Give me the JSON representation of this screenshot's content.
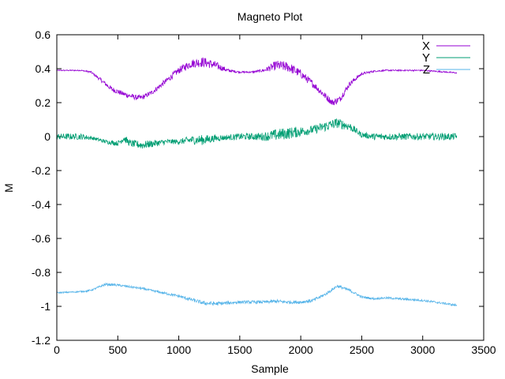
{
  "chart_data": {
    "type": "line",
    "title": "Magneto Plot",
    "xlabel": "Sample",
    "ylabel": "M",
    "xlim": [
      0,
      3500
    ],
    "ylim": [
      -1.2,
      0.6
    ],
    "grid": false,
    "legend_position": "top-right",
    "x_ticks": [
      0,
      500,
      1000,
      1500,
      2000,
      2500,
      3000,
      3500
    ],
    "x_tick_labels": [
      "0",
      "500",
      "1000",
      "1500",
      "2000",
      "2500",
      "3000",
      "3500"
    ],
    "y_ticks": [
      -1.2,
      -1,
      -0.8,
      -0.6,
      -0.4,
      -0.2,
      0,
      0.2,
      0.4,
      0.6
    ],
    "y_tick_labels": [
      "-1.2",
      "-1",
      "-0.8",
      "-0.6",
      "-0.4",
      "-0.2",
      "0",
      "0.2",
      "0.4",
      "0.6"
    ],
    "series": [
      {
        "name": "X",
        "color": "#9400d3",
        "x": [
          0,
          200,
          280,
          350,
          450,
          550,
          650,
          700,
          780,
          900,
          1000,
          1100,
          1200,
          1300,
          1400,
          1500,
          1600,
          1700,
          1800,
          1900,
          2000,
          2100,
          2200,
          2260,
          2320,
          2400,
          2500,
          2600,
          2700,
          2800,
          2900,
          3000,
          3100,
          3200,
          3280
        ],
        "y": [
          0.39,
          0.39,
          0.38,
          0.34,
          0.28,
          0.25,
          0.23,
          0.23,
          0.26,
          0.33,
          0.39,
          0.43,
          0.44,
          0.42,
          0.39,
          0.38,
          0.38,
          0.39,
          0.42,
          0.41,
          0.37,
          0.31,
          0.24,
          0.2,
          0.22,
          0.31,
          0.37,
          0.385,
          0.39,
          0.39,
          0.39,
          0.39,
          0.385,
          0.38,
          0.375
        ],
        "noise": [
          0.003,
          0.003,
          0.006,
          0.01,
          0.015,
          0.015,
          0.015,
          0.014,
          0.014,
          0.016,
          0.02,
          0.025,
          0.03,
          0.025,
          0.01,
          0.005,
          0.005,
          0.01,
          0.03,
          0.03,
          0.025,
          0.02,
          0.02,
          0.02,
          0.02,
          0.015,
          0.008,
          0.005,
          0.004,
          0.004,
          0.004,
          0.004,
          0.004,
          0.004,
          0.004
        ]
      },
      {
        "name": "Y",
        "color": "#009e73",
        "x": [
          0,
          200,
          300,
          400,
          500,
          550,
          600,
          700,
          800,
          900,
          1000,
          1100,
          1200,
          1300,
          1400,
          1500,
          1600,
          1700,
          1800,
          1900,
          2000,
          2100,
          2200,
          2300,
          2400,
          2500,
          2600,
          2700,
          2800,
          2900,
          3000,
          3100,
          3200,
          3280
        ],
        "y": [
          0,
          0,
          -0.01,
          -0.03,
          -0.04,
          -0.01,
          -0.04,
          -0.05,
          -0.04,
          -0.03,
          -0.03,
          -0.02,
          -0.02,
          -0.01,
          -0.005,
          0,
          0,
          0,
          0.01,
          0.02,
          0.03,
          0.04,
          0.06,
          0.08,
          0.06,
          0.01,
          0,
          0,
          0,
          0,
          0,
          0,
          0,
          0
        ],
        "noise": [
          0.018,
          0.018,
          0.01,
          0.012,
          0.015,
          0.02,
          0.02,
          0.025,
          0.02,
          0.015,
          0.015,
          0.025,
          0.03,
          0.02,
          0.015,
          0.02,
          0.02,
          0.025,
          0.035,
          0.035,
          0.03,
          0.025,
          0.03,
          0.03,
          0.025,
          0.015,
          0.02,
          0.02,
          0.02,
          0.02,
          0.02,
          0.02,
          0.02,
          0.02
        ]
      },
      {
        "name": "Z",
        "color": "#56b4e9",
        "x": [
          0,
          150,
          250,
          300,
          400,
          500,
          600,
          700,
          800,
          900,
          1000,
          1100,
          1200,
          1300,
          1400,
          1500,
          1600,
          1700,
          1800,
          1900,
          2000,
          2100,
          2200,
          2300,
          2400,
          2500,
          2600,
          2700,
          2800,
          2900,
          3000,
          3100,
          3200,
          3280
        ],
        "y": [
          -0.92,
          -0.915,
          -0.91,
          -0.9,
          -0.87,
          -0.875,
          -0.885,
          -0.895,
          -0.91,
          -0.925,
          -0.94,
          -0.96,
          -0.98,
          -0.985,
          -0.98,
          -0.975,
          -0.975,
          -0.975,
          -0.97,
          -0.975,
          -0.975,
          -0.965,
          -0.93,
          -0.88,
          -0.905,
          -0.945,
          -0.955,
          -0.95,
          -0.955,
          -0.96,
          -0.965,
          -0.975,
          -0.985,
          -0.995
        ],
        "noise": [
          0.004,
          0.004,
          0.005,
          0.006,
          0.007,
          0.007,
          0.006,
          0.006,
          0.006,
          0.007,
          0.008,
          0.01,
          0.012,
          0.012,
          0.01,
          0.008,
          0.009,
          0.009,
          0.01,
          0.01,
          0.01,
          0.01,
          0.009,
          0.008,
          0.008,
          0.007,
          0.006,
          0.006,
          0.006,
          0.006,
          0.006,
          0.006,
          0.006,
          0.006
        ]
      }
    ]
  }
}
